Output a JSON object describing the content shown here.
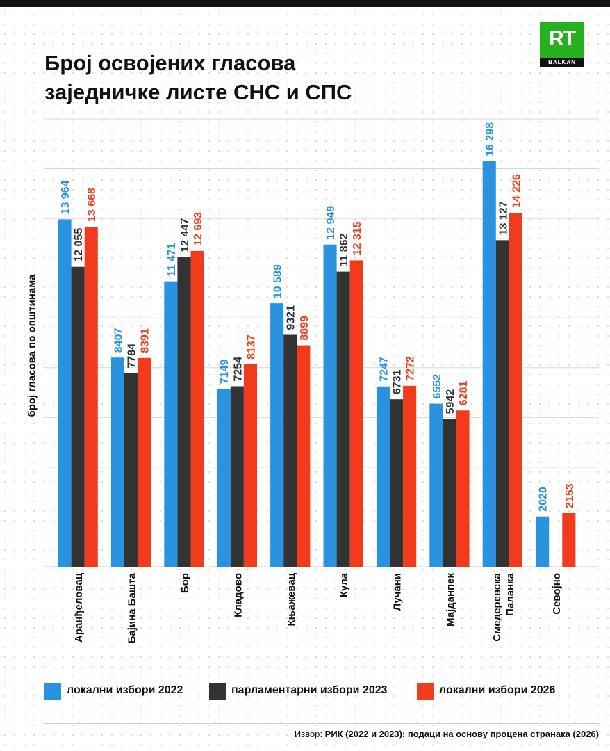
{
  "title_line1": "Број освојених гласова",
  "title_line2": "заједничке листе СНС и СПС",
  "logo": {
    "text": "RT",
    "sub": "BALKAN"
  },
  "source": {
    "prefix": "Извор:",
    "text": "РИК (2022 и 2023); подаци на основу процена странака (2026)"
  },
  "colors": {
    "local2022": "#2a93e0",
    "parl2023": "#333333",
    "local2026": "#f23b1c"
  },
  "chart_data": {
    "type": "bar",
    "title": "Број освојених гласова заједничке листе СНС и СПС",
    "ylabel": "број гласова по општинама",
    "xlabel": "",
    "ylim": [
      0,
      18000
    ],
    "grid": true,
    "legend_position": "bottom",
    "categories": [
      "Аранђеловац",
      "Бајина Башта",
      "Бор",
      "Кладово",
      "Књажевац",
      "Кула",
      "Лучани",
      "Мајданпек",
      "Смедеревска Паланка",
      "Севојно"
    ],
    "category_lines": [
      [
        "Аранђеловац"
      ],
      [
        "Бајина Башта"
      ],
      [
        "Бор"
      ],
      [
        "Кладово"
      ],
      [
        "Књажевац"
      ],
      [
        "Кула"
      ],
      [
        "Лучани"
      ],
      [
        "Мајданпек"
      ],
      [
        "Смедеревска",
        "Паланка"
      ],
      [
        "Севојно"
      ]
    ],
    "series": [
      {
        "name": "локални избори 2022",
        "color": "#2a93e0",
        "values": [
          13964,
          8407,
          11471,
          7149,
          10589,
          12949,
          7247,
          6552,
          16298,
          2020
        ],
        "labels": [
          "13 964",
          "8407",
          "11 471",
          "7149",
          "10 589",
          "12 949",
          "7247",
          "6552",
          "16 298",
          "2020"
        ]
      },
      {
        "name": "парламентарни избори 2023",
        "color": "#333333",
        "values": [
          12055,
          7784,
          12447,
          7254,
          9321,
          11862,
          6731,
          5942,
          13127,
          null
        ],
        "labels": [
          "12 055",
          "7784",
          "12 447",
          "7254",
          "9321",
          "11 862",
          "6731",
          "5942",
          "13 127",
          ""
        ]
      },
      {
        "name": "локални избори 2026",
        "color": "#f23b1c",
        "values": [
          13668,
          8391,
          12693,
          8137,
          8899,
          12315,
          7272,
          6281,
          14226,
          2153
        ],
        "labels": [
          "13 668",
          "8391",
          "12 693",
          "8137",
          "8899",
          "12 315",
          "7272",
          "6281",
          "14 226",
          "2153"
        ]
      }
    ]
  }
}
